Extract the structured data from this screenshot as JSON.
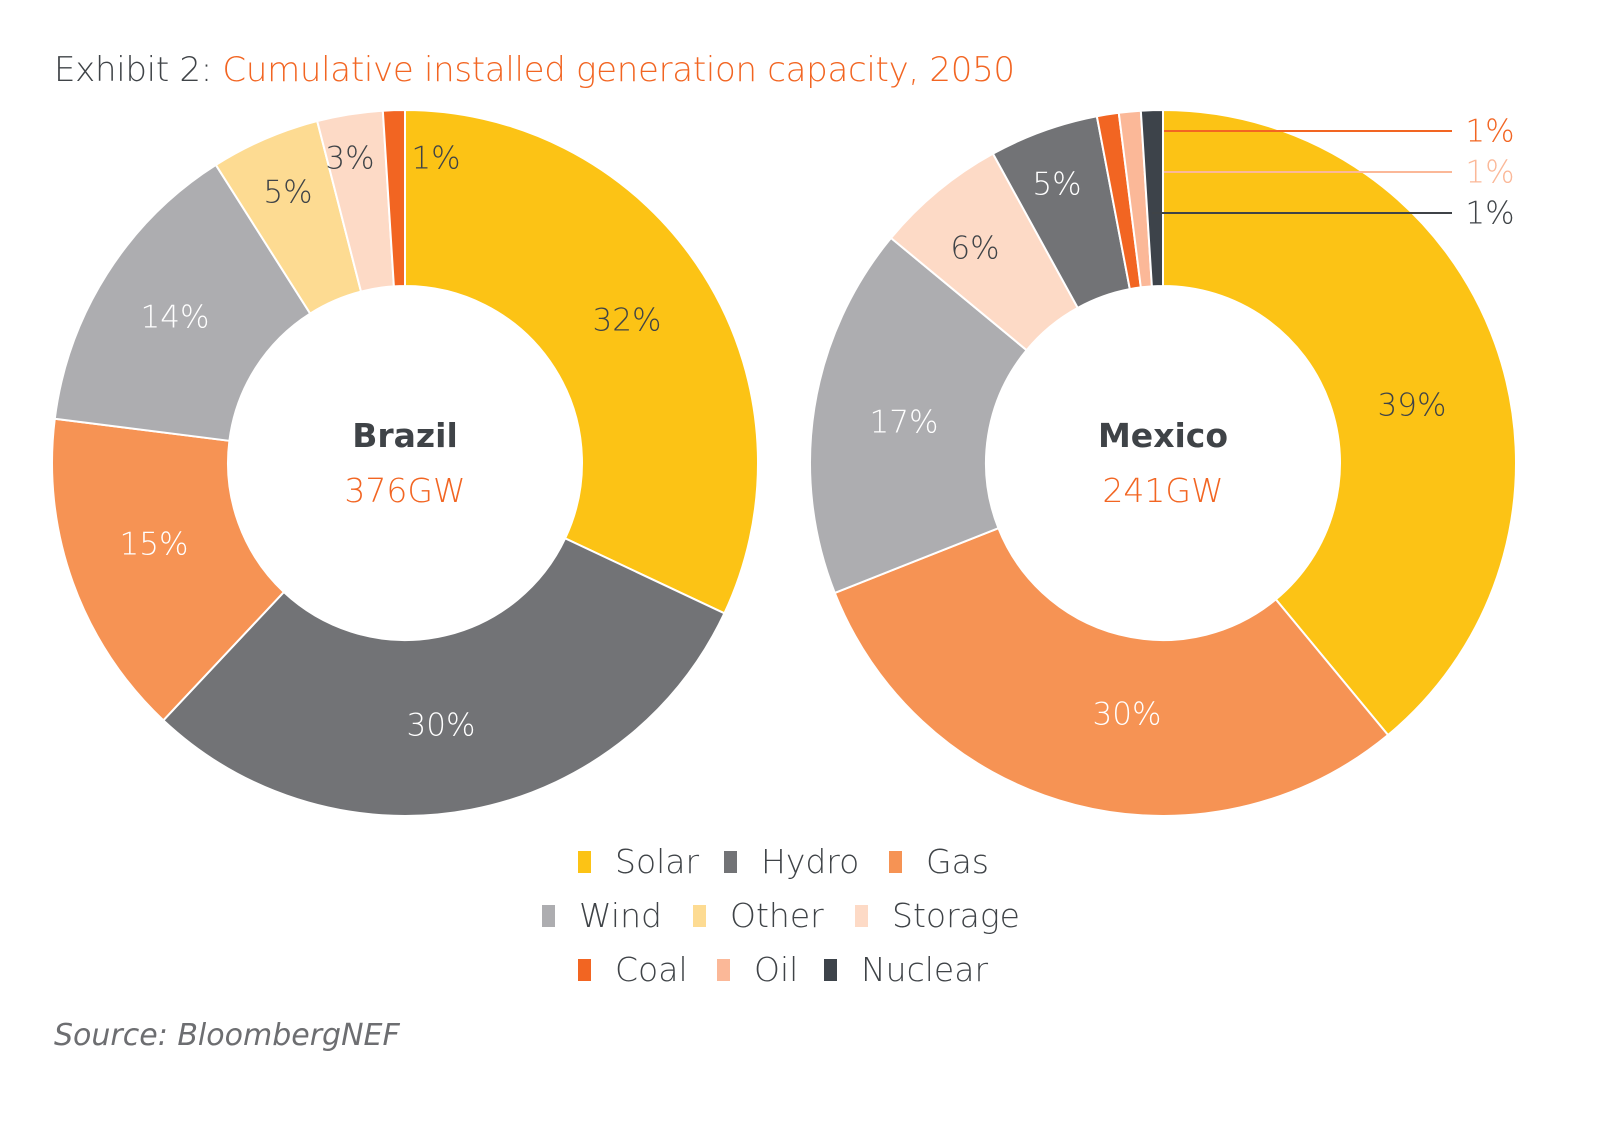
{
  "title": {
    "exhibit": "Exhibit 2:",
    "main": "Cumulative installed generation capacity, 2050"
  },
  "source": "Source: BloombergNEF",
  "colors": {
    "Solar": "#fcc315",
    "Hydro": "#727376",
    "Gas": "#f69354",
    "Wind": "#adadb0",
    "Other": "#fddb92",
    "Storage": "#fddac6",
    "Coal": "#f26522",
    "Oil": "#fbb898",
    "Nuclear": "#3d434a",
    "accent": "#f26522",
    "text": "#3f4347"
  },
  "legend": {
    "rows": [
      [
        "Solar",
        "Hydro",
        "Gas"
      ],
      [
        "Wind",
        "Other",
        "Storage"
      ],
      [
        "Coal",
        "Oil",
        "Nuclear"
      ]
    ]
  },
  "chart_data": [
    {
      "type": "pie",
      "name": "Brazil",
      "total": "376GW",
      "categories": [
        "Solar",
        "Hydro",
        "Gas",
        "Wind",
        "Other",
        "Storage",
        "Coal"
      ],
      "values": [
        32,
        30,
        15,
        14,
        5,
        3,
        1
      ],
      "labels": [
        "32%",
        "30%",
        "15%",
        "14%",
        "5%",
        "3%",
        "1%"
      ]
    },
    {
      "type": "pie",
      "name": "Mexico",
      "total": "241GW",
      "categories": [
        "Solar",
        "Gas",
        "Wind",
        "Storage",
        "Hydro",
        "Coal",
        "Oil",
        "Nuclear"
      ],
      "values": [
        39,
        30,
        17,
        6,
        5,
        1,
        1,
        1
      ],
      "labels": [
        "39%",
        "30%",
        "17%",
        "6%",
        "5%",
        "1%",
        "1%",
        "1%"
      ]
    }
  ]
}
